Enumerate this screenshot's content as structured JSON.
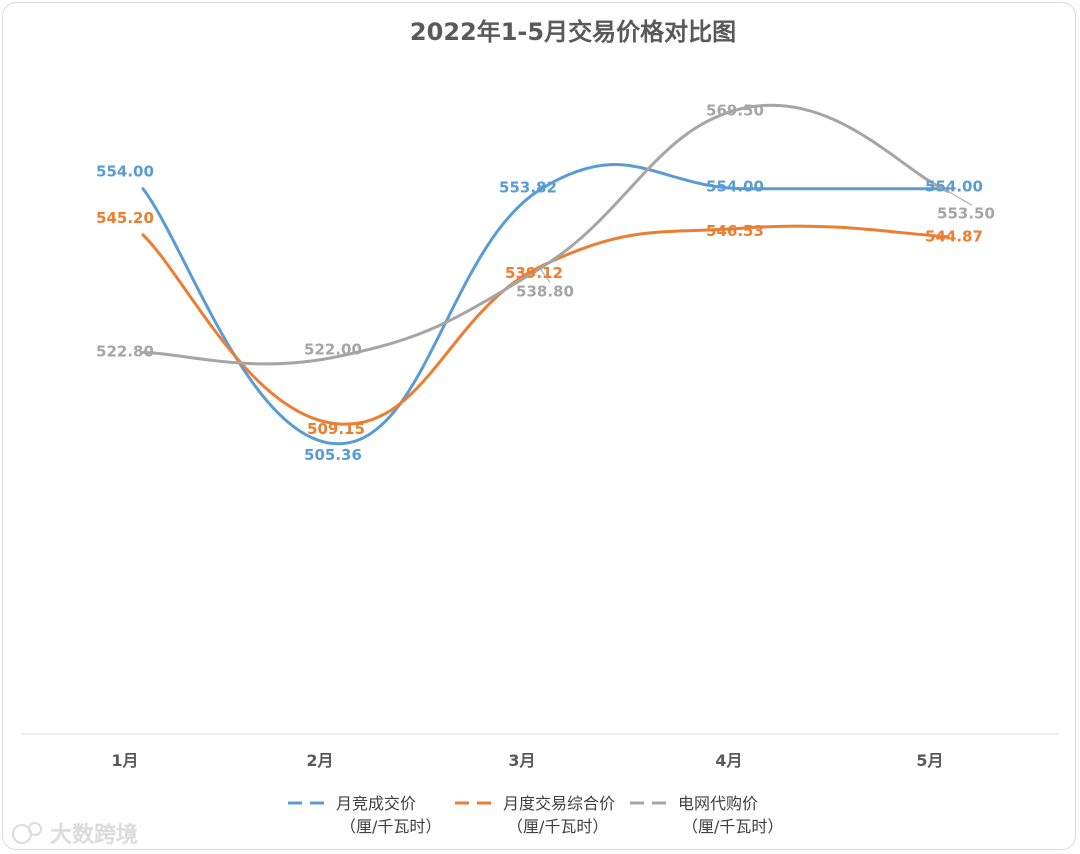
{
  "chart_data": {
    "type": "line",
    "title": "2022年1-5月交易价格对比图",
    "categories": [
      "1月",
      "2月",
      "3月",
      "4月",
      "5月"
    ],
    "ylim": [
      450,
      590
    ],
    "grid": false,
    "legend_position": "bottom",
    "series": [
      {
        "name": "月竞成交价",
        "unit": "（厘/千瓦时）",
        "color": "#5b9bd5",
        "values": [
          554.0,
          505.36,
          553.82,
          554.0,
          554.0
        ],
        "labels": [
          "554.00",
          "505.36",
          "553.82",
          "554.00",
          "554.00"
        ]
      },
      {
        "name": "月度交易综合价",
        "unit": "（厘/千瓦时）",
        "color": "#ed7d31",
        "values": [
          545.2,
          509.15,
          539.12,
          546.53,
          544.87
        ],
        "labels": [
          "545.20",
          "509.15",
          "539.12",
          "546.53",
          "544.87"
        ]
      },
      {
        "name": "电网代购价",
        "unit": "（厘/千瓦时）",
        "color": "#a5a5a5",
        "values": [
          522.8,
          522.0,
          538.8,
          569.5,
          553.5
        ],
        "labels": [
          "522.80",
          "522.00",
          "538.80",
          "569.50",
          "553.50"
        ]
      }
    ]
  },
  "watermark": "大数跨境"
}
